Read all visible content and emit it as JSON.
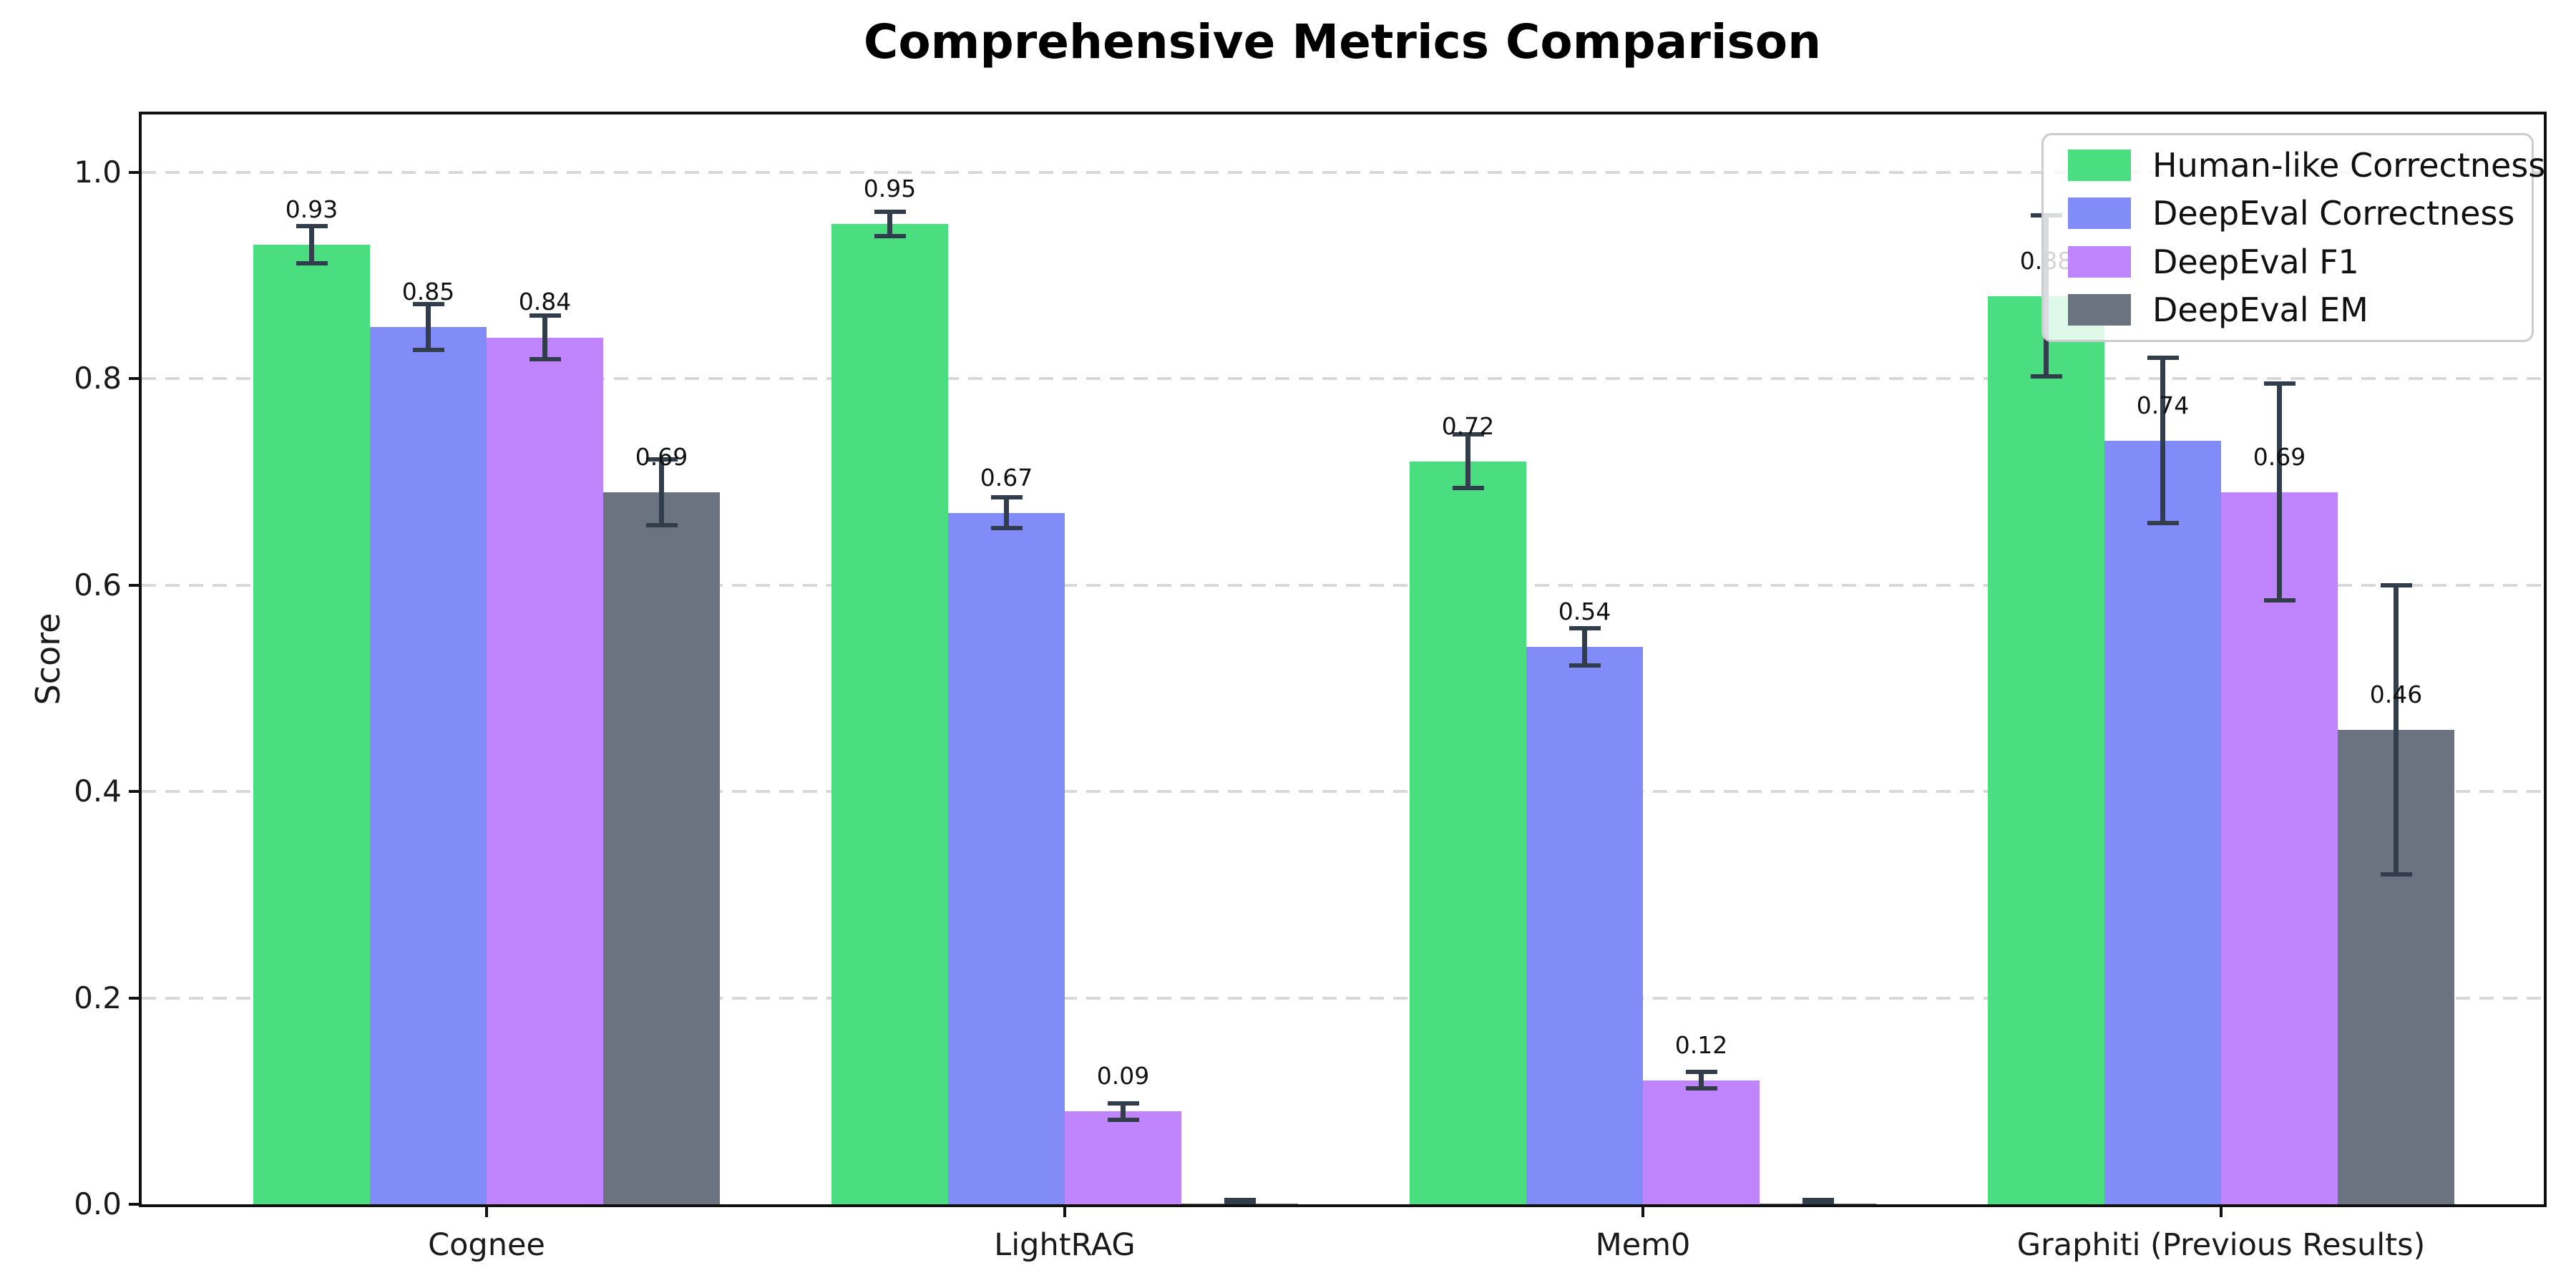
{
  "figure": {
    "title": "Comprehensive Metrics Comparison"
  },
  "chart_data": {
    "type": "bar",
    "title": "Comprehensive Metrics Comparison",
    "xlabel": "",
    "ylabel": "Score",
    "categories": [
      "Cognee",
      "LightRAG",
      "Mem0",
      "Graphiti (Previous Results)"
    ],
    "series": [
      {
        "name": "Human-like Correctness",
        "color": "#4ade80",
        "values": [
          0.93,
          0.95,
          0.72,
          0.88
        ],
        "errors": [
          0.018,
          0.012,
          0.026,
          0.078
        ],
        "value_labels": [
          "0.93",
          "0.95",
          "0.72",
          "0.88"
        ]
      },
      {
        "name": "DeepEval Correctness",
        "color": "#818cf8",
        "values": [
          0.85,
          0.67,
          0.54,
          0.74
        ],
        "errors": [
          0.022,
          0.015,
          0.018,
          0.08
        ],
        "value_labels": [
          "0.85",
          "0.67",
          "0.54",
          "0.74"
        ]
      },
      {
        "name": "DeepEval F1",
        "color": "#c084fc",
        "values": [
          0.84,
          0.09,
          0.12,
          0.69
        ],
        "errors": [
          0.021,
          0.008,
          0.008,
          0.105
        ],
        "value_labels": [
          "0.84",
          "0.09",
          "0.12",
          "0.69"
        ]
      },
      {
        "name": "DeepEval EM",
        "color": "#6b7280",
        "values": [
          0.69,
          0.001,
          0.001,
          0.46
        ],
        "errors": [
          0.032,
          0.003,
          0.003,
          0.14
        ],
        "value_labels": [
          "0.69",
          "",
          "",
          "0.46"
        ]
      }
    ],
    "ylim": [
      0,
      1.056
    ],
    "yticks": [
      "0.0",
      "0.2",
      "0.4",
      "0.6",
      "0.8",
      "1.0"
    ],
    "grid": "horizontal dashed",
    "grid_color": "#d8d8d8",
    "spine_color": "#111111",
    "error_bar_color": "#313d4b",
    "legend_position": "upper right"
  }
}
